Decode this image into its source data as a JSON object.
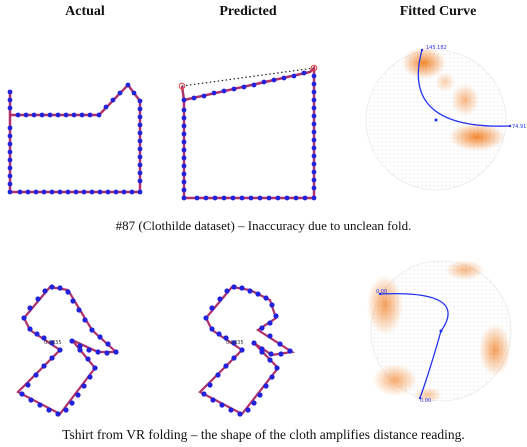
{
  "headers": [
    "Actual",
    "Predicted",
    "Fitted Curve"
  ],
  "row1": {
    "caption": "#87 (Clothilde dataset) – Inaccuracy due to unclean fold.",
    "fit_labels": [
      "145.182",
      "74.91"
    ]
  },
  "row2": {
    "caption": "Tshirt from VR folding – the shape of the cloth amplifies distance reading.",
    "point_labels": [
      "0.0235",
      "0.0235"
    ],
    "fit_labels": [
      "0.00",
      "0.00"
    ]
  },
  "colors": {
    "dot": "#2222dd",
    "edge": "#b0306a",
    "fit_curve": "#2233ee",
    "heat": "#f07a1a",
    "dotted_fold": "#222222"
  }
}
